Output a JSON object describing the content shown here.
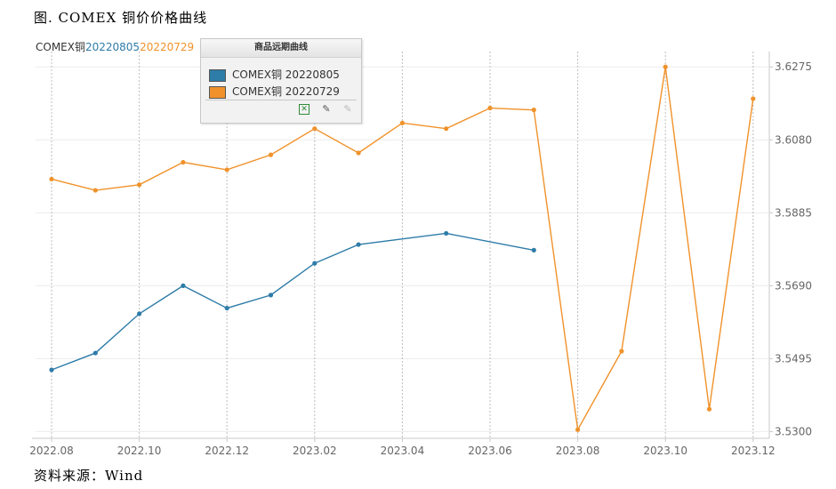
{
  "figure_title": "图. COMEX 铜价价格曲线",
  "source": "资料来源：Wind",
  "chart_header": {
    "prefix": "COMEX铜",
    "series1": "20220805",
    "series2": "20220729"
  },
  "legend": {
    "title": "商品远期曲线",
    "items": [
      {
        "label": "COMEX铜 20220805",
        "color": "#2e7ca8"
      },
      {
        "label": "COMEX铜 20220729",
        "color": "#f0922b"
      }
    ],
    "icons": [
      "excel-icon",
      "edit-icon",
      "disabled-edit-icon"
    ]
  },
  "chart_data": {
    "type": "line",
    "title": "",
    "xlabel": "",
    "ylabel": "",
    "x_ticks": [
      "2022.08",
      "2022.10",
      "2022.12",
      "2023.02",
      "2023.04",
      "2023.06",
      "2023.08",
      "2023.10",
      "2023.12"
    ],
    "y_ticks": [
      "3.5300",
      "3.5495",
      "3.5690",
      "3.5885",
      "3.6080",
      "3.6275"
    ],
    "ylim": [
      3.5282,
      3.6316
    ],
    "y_axis_side": "right",
    "grid": true,
    "series": [
      {
        "name": "COMEX铜 20220805",
        "color": "#2e7ca8",
        "x": [
          "2022.08",
          "2022.09",
          "2022.10",
          "2022.11",
          "2022.12",
          "2023.01",
          "2023.02",
          "2023.03",
          "2023.05",
          "2023.07"
        ],
        "values": [
          3.5465,
          3.551,
          3.5615,
          3.569,
          3.563,
          3.5665,
          3.575,
          3.58,
          3.583,
          3.5785
        ]
      },
      {
        "name": "COMEX铜 20220729",
        "color": "#f0922b",
        "x": [
          "2022.08",
          "2022.09",
          "2022.10",
          "2022.11",
          "2022.12",
          "2023.01",
          "2023.02",
          "2023.03",
          "2023.04",
          "2023.05",
          "2023.06",
          "2023.07",
          "2023.08",
          "2023.09",
          "2023.10",
          "2023.11",
          "2023.12"
        ],
        "values": [
          3.5975,
          3.5945,
          3.596,
          3.602,
          3.6,
          3.604,
          3.611,
          3.6045,
          3.6125,
          3.611,
          3.6165,
          3.616,
          3.5305,
          3.5515,
          3.6275,
          3.536,
          3.619
        ]
      }
    ]
  }
}
